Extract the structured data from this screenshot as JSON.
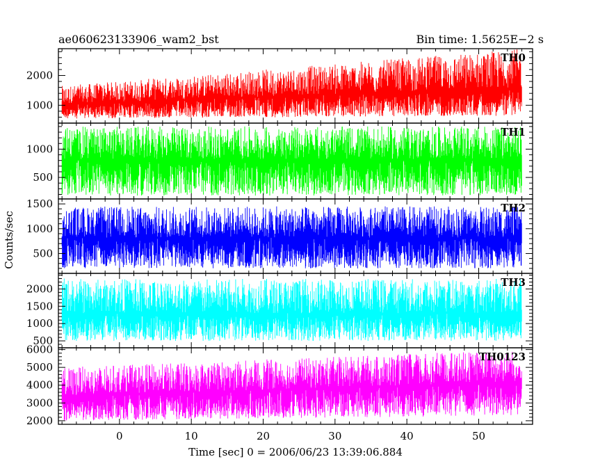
{
  "chart_data": {
    "type": "line",
    "title": "ae060623133906_wam2_bst",
    "bin_time_label": "Bin time: 1.5625E−2 s",
    "xlabel": "Time [sec] 0 = 2006/06/23 13:39:06.884",
    "ylabel": "Counts/sec",
    "xlim": [
      -8.5,
      57.5
    ],
    "data_x_range": [
      -8,
      56
    ],
    "x_ticks": [
      0,
      10,
      20,
      30,
      40,
      50
    ],
    "x_tick_labels": [
      "0",
      "10",
      "20",
      "30",
      "40",
      "50"
    ],
    "grid": false,
    "panels": [
      {
        "name": "TH0",
        "color": "#ff0000",
        "ylim": [
          400,
          2900
        ],
        "y_ticks": [
          1000,
          2000
        ],
        "y_tick_labels": [
          "1000",
          "2000"
        ],
        "envelope": {
          "x": [
            -8,
            56
          ],
          "lower": [
            550,
            650
          ],
          "upper_start": [
            1650,
            2900
          ],
          "mean_start": [
            1050,
            1600
          ]
        }
      },
      {
        "name": "TH1",
        "color": "#00ff00",
        "ylim": [
          120,
          1460
        ],
        "y_ticks": [
          500,
          1000
        ],
        "y_tick_labels": [
          "500",
          "1000"
        ],
        "envelope": {
          "x": [
            -8,
            56
          ],
          "lower": [
            180,
            180
          ],
          "upper_start": [
            1400,
            1400
          ],
          "mean_start": [
            820,
            820
          ]
        }
      },
      {
        "name": "TH2",
        "color": "#0000ff",
        "ylim": [
          100,
          1600
        ],
        "y_ticks": [
          500,
          1000,
          1500
        ],
        "y_tick_labels": [
          "500",
          "1000",
          "1500"
        ],
        "envelope": {
          "x": [
            -8,
            56
          ],
          "lower": [
            200,
            200
          ],
          "upper_start": [
            1450,
            1450
          ],
          "mean_start": [
            820,
            820
          ]
        }
      },
      {
        "name": "TH3",
        "color": "#00ffff",
        "ylim": [
          300,
          2450
        ],
        "y_ticks": [
          500,
          1000,
          1500,
          2000
        ],
        "y_tick_labels": [
          "500",
          "1000",
          "1500",
          "2000"
        ],
        "envelope": {
          "x": [
            -8,
            56
          ],
          "lower": [
            500,
            500
          ],
          "upper_start": [
            2300,
            2300
          ],
          "mean_start": [
            1300,
            1300
          ]
        }
      },
      {
        "name": "TH0123",
        "color": "#ff00ff",
        "ylim": [
          1800,
          6100
        ],
        "y_ticks": [
          2000,
          3000,
          4000,
          5000,
          6000
        ],
        "y_tick_labels": [
          "2000",
          "3000",
          "4000",
          "5000",
          "6000"
        ],
        "envelope": {
          "x": [
            -8,
            56
          ],
          "lower": [
            2000,
            2300
          ],
          "upper_start": [
            5000,
            6000
          ],
          "mean_start": [
            3400,
            4200
          ]
        }
      }
    ]
  }
}
